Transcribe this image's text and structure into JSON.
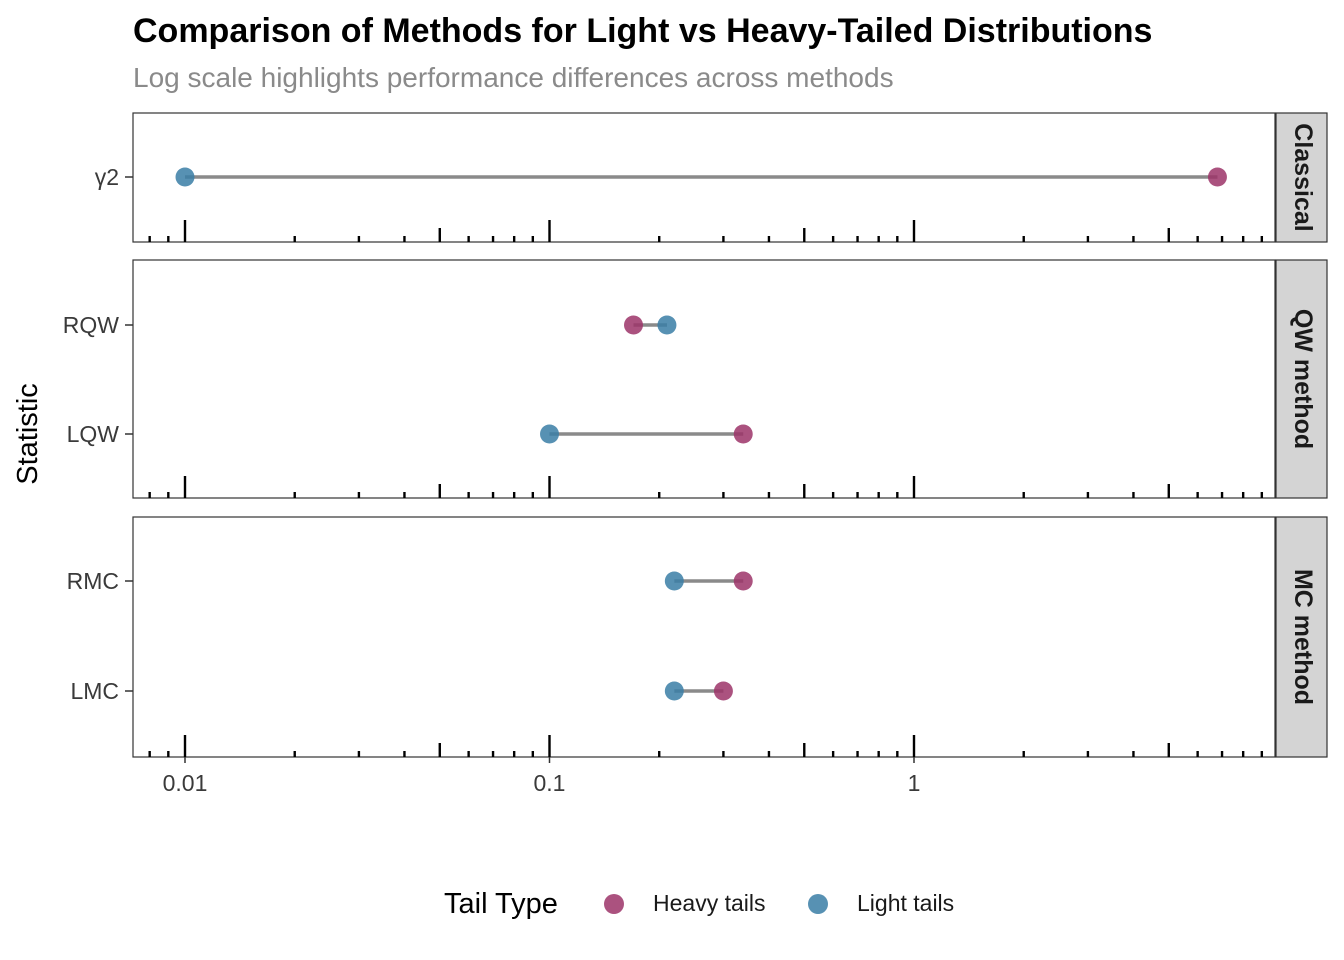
{
  "chart_data": {
    "type": "dumbbell",
    "title": "Comparison of Methods for Light vs Heavy-Tailed Distributions",
    "subtitle": "Log scale highlights performance differences across methods",
    "ylabel": "Statistic",
    "x_scale": "log10",
    "xlim": [
      0.0075,
      9.6
    ],
    "x_ticks": [
      0.01,
      0.1,
      1
    ],
    "x_tick_labels": [
      "0.01",
      "0.1",
      "1"
    ],
    "legend": {
      "title": "Tail Type",
      "placement": "bottom",
      "entries": [
        {
          "name": "Heavy tails",
          "color": "#9c3468"
        },
        {
          "name": "Light tails",
          "color": "#3a7ea6"
        }
      ]
    },
    "segment_color": "#8a8a8a",
    "panels": [
      {
        "label": "Classical",
        "rows": [
          {
            "statistic": "γ2",
            "heavy": 6.8,
            "light": 0.01
          }
        ]
      },
      {
        "label": "QW method",
        "rows": [
          {
            "statistic": "RQW",
            "heavy": 0.17,
            "light": 0.21
          },
          {
            "statistic": "LQW",
            "heavy": 0.34,
            "light": 0.1
          }
        ]
      },
      {
        "label": "MC method",
        "rows": [
          {
            "statistic": "RMC",
            "heavy": 0.34,
            "light": 0.22
          },
          {
            "statistic": "LMC",
            "heavy": 0.3,
            "light": 0.22
          }
        ]
      }
    ]
  }
}
